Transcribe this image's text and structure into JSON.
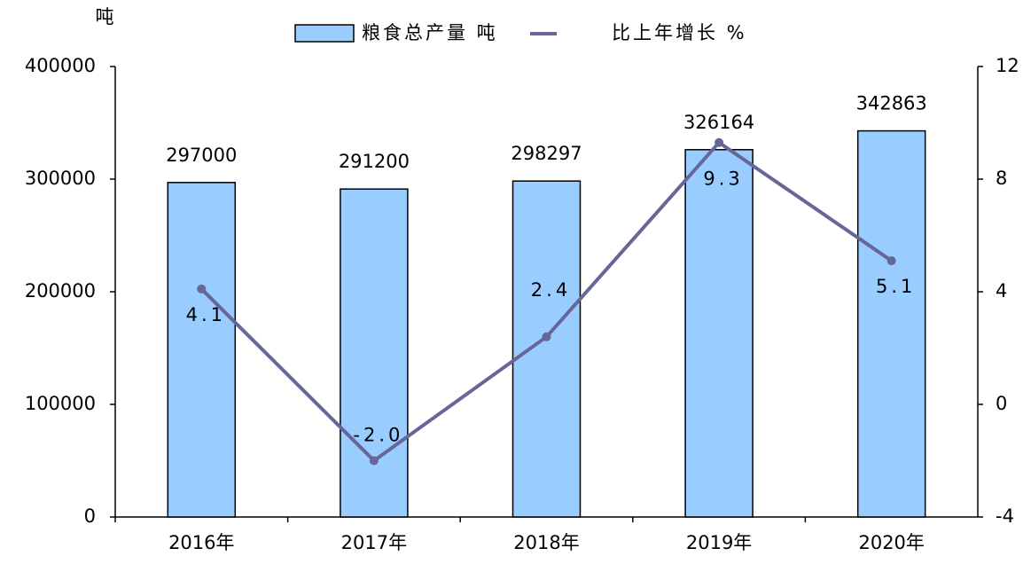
{
  "chart_data": {
    "type": "bar",
    "y_label": "吨",
    "categories": [
      "2016年",
      "2017年",
      "2018年",
      "2019年",
      "2020年"
    ],
    "series": [
      {
        "name": "粮食总产量 吨",
        "type": "bar",
        "color": "#99ccff",
        "values": [
          297000,
          291200,
          298297,
          326164,
          342863
        ]
      },
      {
        "name": "比上年增长 %",
        "type": "line",
        "axis": "y2",
        "color": "#666699",
        "values": [
          4.1,
          -2.0,
          2.4,
          9.3,
          5.1
        ],
        "value_labels": [
          "4.1",
          "-2.0",
          "2.4",
          "9.3",
          "5.1"
        ]
      }
    ],
    "ylim": [
      0,
      400000
    ],
    "yticks": [
      0,
      100000,
      200000,
      300000,
      400000
    ],
    "y2lim": [
      -4,
      12
    ],
    "y2ticks": [
      -4,
      0,
      4,
      8,
      12
    ],
    "grid": false,
    "legend": "top"
  }
}
